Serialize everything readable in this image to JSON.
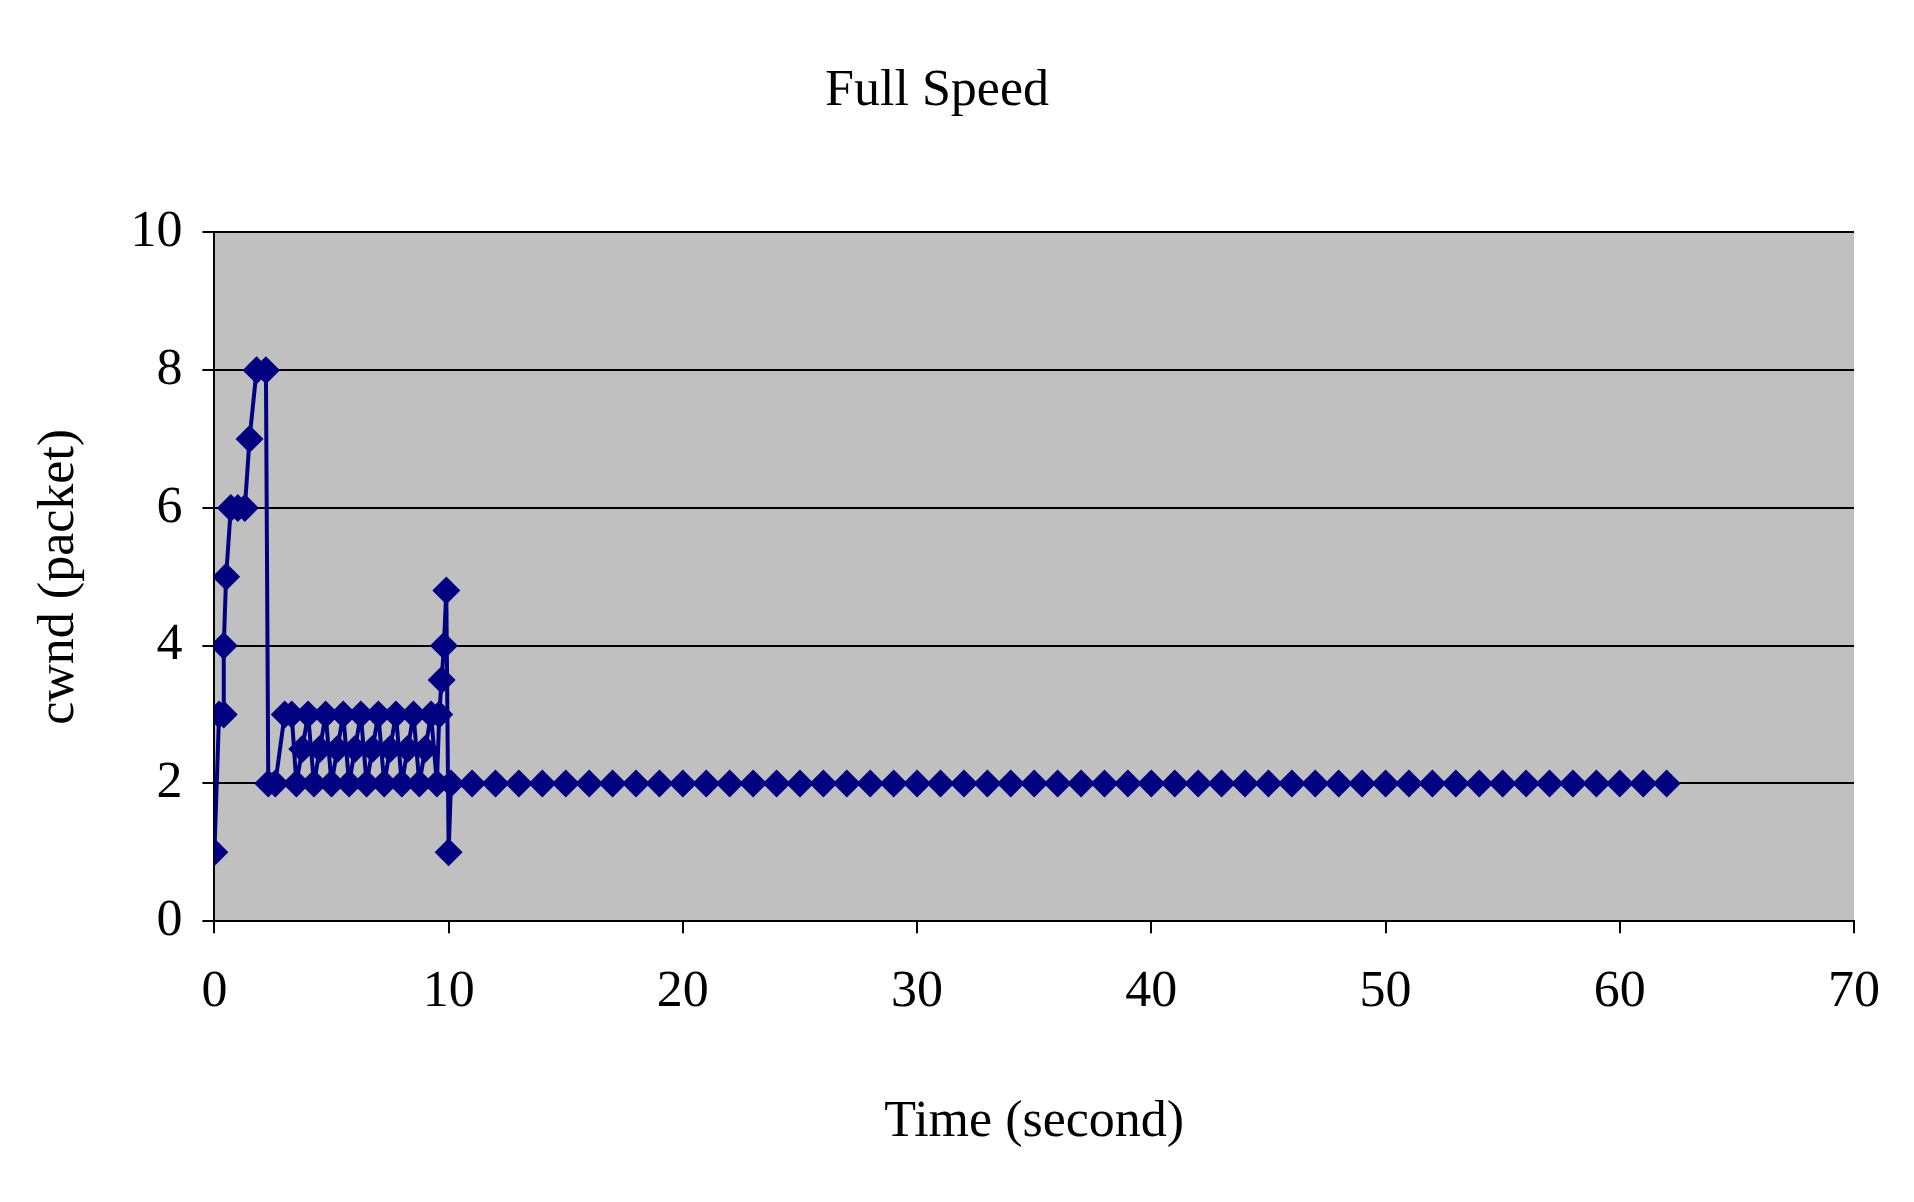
{
  "chart_data": {
    "type": "line",
    "title": "Full Speed",
    "xlabel": "Time (second)",
    "ylabel": "cwnd (packet)",
    "xlim": [
      0,
      70
    ],
    "xticks": [
      0,
      10,
      20,
      30,
      40,
      50,
      60,
      70
    ],
    "ylim": [
      0,
      10
    ],
    "yticks": [
      0,
      2,
      4,
      6,
      8,
      10
    ],
    "grid": "y",
    "legend": false,
    "marker": "diamond",
    "line_style": "solid",
    "series": [
      {
        "color": "#000080",
        "x": [
          0,
          0.2,
          0.4,
          0.4,
          0.5,
          0.7,
          1.0,
          1.3,
          1.5,
          1.8,
          2.2,
          2.3,
          2.6,
          3.0,
          3.3,
          3.5,
          3.75,
          4,
          4.25,
          4.5,
          4.75,
          5,
          5.25,
          5.5,
          5.75,
          6,
          6.25,
          6.5,
          6.75,
          7,
          7.25,
          7.5,
          7.75,
          8,
          8.25,
          8.5,
          8.75,
          9,
          9.25,
          9.5,
          9.6,
          9.7,
          9.8,
          9.9,
          10,
          10.1,
          11,
          12,
          13,
          14,
          15,
          16,
          17,
          18,
          19,
          20,
          21,
          22,
          23,
          24,
          25,
          26,
          27,
          28,
          29,
          30,
          31,
          32,
          33,
          34,
          35,
          36,
          37,
          38,
          39,
          40,
          41,
          42,
          43,
          44,
          45,
          46,
          47,
          48,
          49,
          50,
          51,
          52,
          53,
          54,
          55,
          56,
          57,
          58,
          59,
          60,
          61,
          62
        ],
        "values": [
          1,
          3,
          3,
          4,
          5,
          6,
          6,
          6,
          7,
          8,
          8,
          2,
          2,
          3,
          3,
          2,
          2.5,
          3,
          2,
          2.5,
          3,
          2,
          2.5,
          3,
          2,
          2.5,
          3,
          2,
          2.5,
          3,
          2,
          2.5,
          3,
          2,
          2.5,
          3,
          2,
          2.5,
          3,
          2,
          3,
          3.5,
          4,
          4.8,
          1,
          2,
          2,
          2,
          2,
          2,
          2,
          2,
          2,
          2,
          2,
          2,
          2,
          2,
          2,
          2,
          2,
          2,
          2,
          2,
          2,
          2,
          2,
          2,
          2,
          2,
          2,
          2,
          2,
          2,
          2,
          2,
          2,
          2,
          2,
          2,
          2,
          2,
          2,
          2,
          2,
          2,
          2,
          2,
          2,
          2,
          2,
          2,
          2,
          2,
          2,
          2,
          2,
          2
        ]
      }
    ]
  }
}
